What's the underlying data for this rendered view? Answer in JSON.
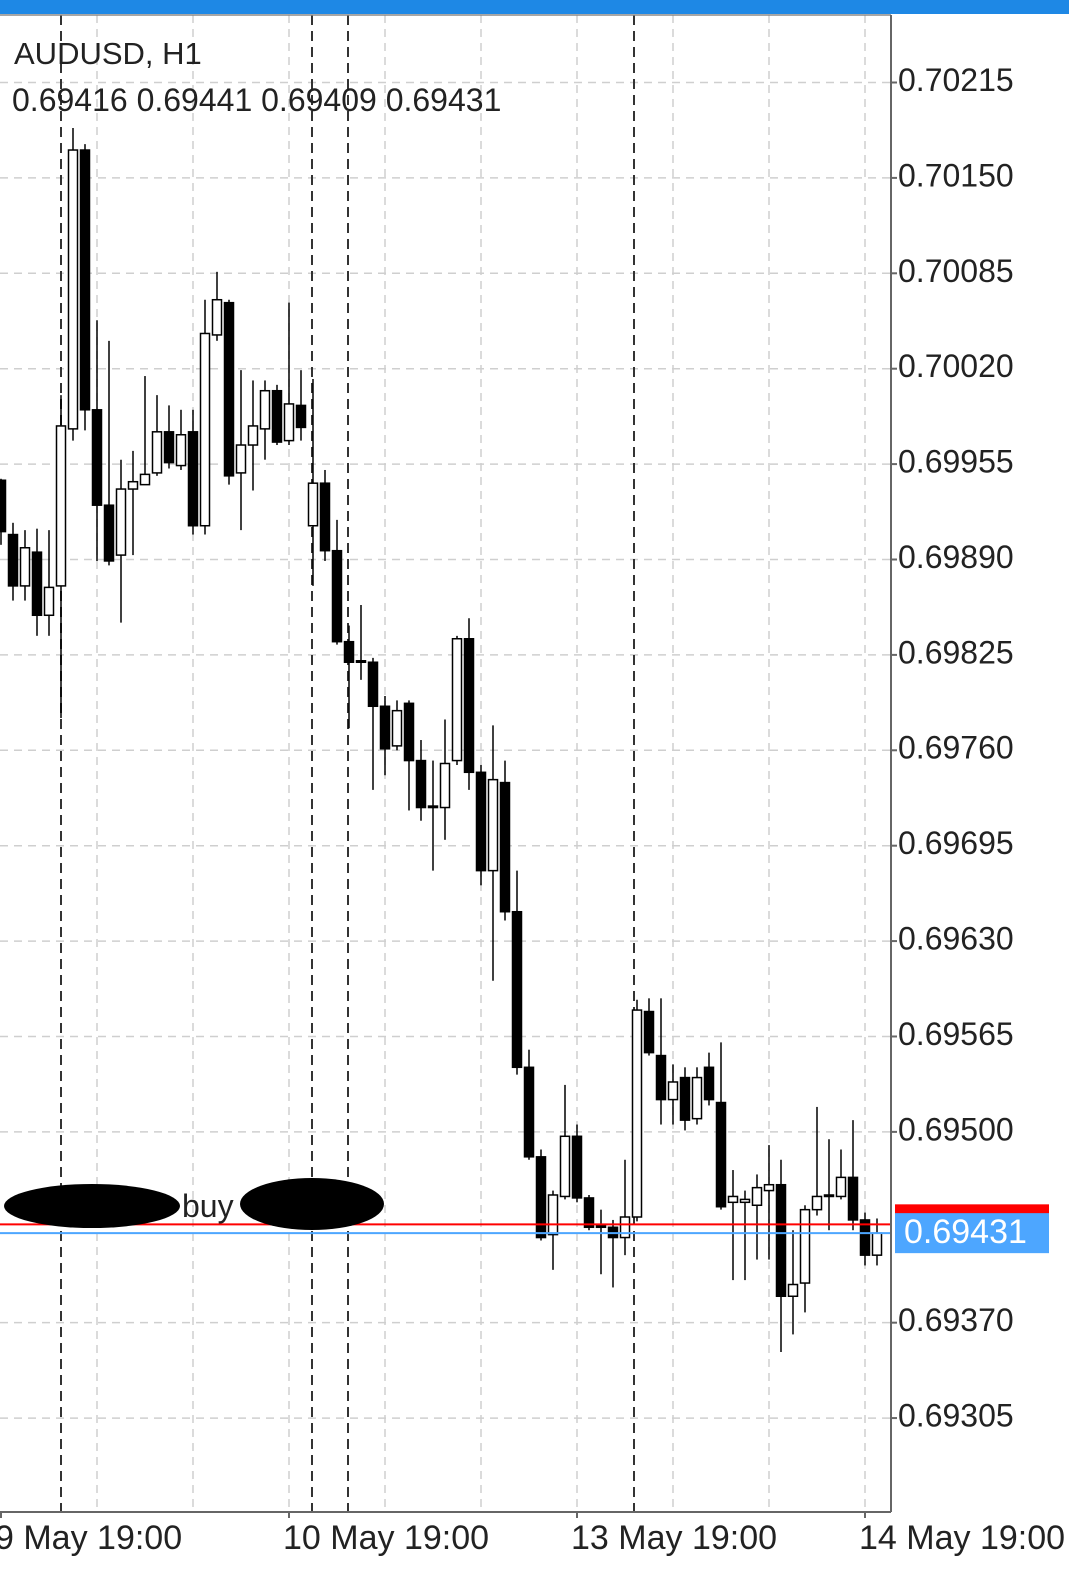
{
  "chart_data": {
    "type": "candlestick",
    "title": "AUDUSD, H1",
    "categories": [
      "9 May 19:00",
      null,
      null,
      null,
      null,
      null,
      null,
      null,
      null,
      null,
      null,
      null,
      null,
      null,
      null,
      null,
      null,
      null,
      null,
      null,
      null,
      null,
      null,
      null,
      "10 May 19:00",
      null,
      null,
      null,
      null,
      null,
      null,
      null,
      null,
      null,
      null,
      null,
      null,
      null,
      null,
      null,
      null,
      null,
      null,
      null,
      null,
      null,
      null,
      null,
      "13 May 19:00",
      null,
      null,
      null,
      null,
      null,
      null,
      null,
      null,
      null,
      null,
      null,
      null,
      null,
      null,
      null,
      null,
      null,
      null,
      null,
      null,
      null,
      null,
      null,
      "14 May 19:00",
      null
    ],
    "open": [
      0.69944,
      0.69907,
      0.69872,
      0.69895,
      0.69852,
      0.69872,
      0.69979,
      0.70169,
      0.69992,
      0.69927,
      0.69893,
      0.69938,
      0.69941,
      0.69949,
      0.69977,
      0.69954,
      0.69977,
      0.69913,
      0.70043,
      0.70065,
      0.69949,
      0.69968,
      0.69979,
      0.70005,
      0.69971,
      0.69995,
      0.69913,
      0.69942,
      0.69896,
      0.69834,
      0.69821,
      0.6982,
      0.6979,
      0.69763,
      0.69792,
      0.69753,
      0.69722,
      0.69721,
      0.69753,
      0.69836,
      0.69745,
      0.69678,
      0.69738,
      0.6965,
      0.69544,
      0.69483,
      0.6943,
      0.69456,
      0.69497,
      0.69455,
      0.69437,
      0.69435,
      0.69428,
      0.69442,
      0.69582,
      0.69552,
      0.69522,
      0.69537,
      0.69509,
      0.69544,
      0.6952,
      0.69452,
      0.69452,
      0.6945,
      0.6946,
      0.69464,
      0.69388,
      0.69397,
      0.69447,
      0.69456,
      0.69456,
      0.69469,
      0.6944,
      0.69416
    ],
    "high": [
      0.69945,
      0.69915,
      0.6991,
      0.69911,
      0.6991,
      0.70002,
      0.70184,
      0.70173,
      0.70053,
      0.70039,
      0.69958,
      0.69964,
      0.70015,
      0.70002,
      0.69995,
      0.69992,
      0.69992,
      0.70067,
      0.70086,
      0.70067,
      0.70019,
      0.70012,
      0.70012,
      0.70009,
      0.70065,
      0.70019,
      0.70013,
      0.69951,
      0.69917,
      0.69845,
      0.69859,
      0.69823,
      0.69797,
      0.69794,
      0.69794,
      0.69767,
      0.69753,
      0.69781,
      0.69838,
      0.6985,
      0.6975,
      0.69777,
      0.69753,
      0.69678,
      0.69556,
      0.69488,
      0.6946,
      0.69532,
      0.69505,
      0.69457,
      0.69447,
      0.6944,
      0.69481,
      0.6959,
      0.69591,
      0.69591,
      0.69546,
      0.69544,
      0.69544,
      0.69554,
      0.69561,
      0.69474,
      0.6946,
      0.69471,
      0.69491,
      0.69481,
      0.69433,
      0.6945,
      0.69517,
      0.69495,
      0.69488,
      0.69508,
      0.69445,
      0.69441
    ],
    "low": [
      0.699,
      0.69862,
      0.69862,
      0.69838,
      0.69838,
      0.69782,
      0.69971,
      0.69978,
      0.69889,
      0.69886,
      0.69847,
      0.69893,
      0.69941,
      0.69947,
      0.69952,
      0.69951,
      0.69907,
      0.69907,
      0.70039,
      0.69941,
      0.6991,
      0.69937,
      0.69958,
      0.69968,
      0.69968,
      0.69971,
      0.69872,
      0.69889,
      0.69832,
      0.69775,
      0.69808,
      0.69733,
      0.69743,
      0.6976,
      0.69719,
      0.69712,
      0.69678,
      0.69699,
      0.6975,
      0.69733,
      0.69668,
      0.69603,
      0.69644,
      0.69539,
      0.69481,
      0.69426,
      0.69406,
      0.69454,
      0.69452,
      0.69433,
      0.69403,
      0.69394,
      0.69416,
      0.69439,
      0.69552,
      0.69505,
      0.69505,
      0.69501,
      0.69505,
      0.69518,
      0.69447,
      0.69399,
      0.69399,
      0.69413,
      0.69413,
      0.6935,
      0.69362,
      0.69377,
      0.69443,
      0.69433,
      0.69454,
      0.69433,
      0.69409,
      0.69409
    ],
    "close": [
      0.69909,
      0.69872,
      0.69898,
      0.69852,
      0.69871,
      0.69981,
      0.70169,
      0.69992,
      0.69927,
      0.69889,
      0.69938,
      0.69943,
      0.69948,
      0.69977,
      0.69956,
      0.69975,
      0.69913,
      0.70044,
      0.70067,
      0.69947,
      0.69968,
      0.69981,
      0.70005,
      0.6997,
      0.69996,
      0.6998,
      0.69942,
      0.69896,
      0.69834,
      0.6982,
      0.6982,
      0.6979,
      0.69761,
      0.69787,
      0.69753,
      0.69721,
      0.69721,
      0.69751,
      0.69836,
      0.69745,
      0.69678,
      0.6974,
      0.6965,
      0.69544,
      0.69483,
      0.69428,
      0.69457,
      0.69497,
      0.69455,
      0.69435,
      0.69435,
      0.69428,
      0.69442,
      0.69583,
      0.69554,
      0.69522,
      0.69534,
      0.69508,
      0.69537,
      0.69522,
      0.69449,
      0.69456,
      0.69454,
      0.69462,
      0.69464,
      0.69388,
      0.69396,
      0.69447,
      0.69456,
      0.69457,
      0.69469,
      0.6944,
      0.69416,
      0.69431
    ],
    "up_color": "#ffffff",
    "down_color": "#000000",
    "ylim": [
      0.69241,
      0.70261
    ],
    "yticks": [
      0.70215,
      {
        "value": 0.7015,
        "label": "0.70150"
      },
      0.70085,
      {
        "value": 0.7002,
        "label": "0.70020"
      },
      0.69955,
      {
        "value": 0.6989,
        "label": "0.69890"
      },
      0.69825,
      {
        "value": 0.6976,
        "label": "0.69760"
      },
      0.69695,
      {
        "value": 0.6963,
        "label": "0.69630"
      },
      0.69565,
      {
        "value": 0.695,
        "label": "0.69500"
      },
      {
        "value": 0.6937,
        "label": "0.69370"
      },
      0.69305
    ],
    "grid": true,
    "order_line": {
      "label": "buy",
      "value": 0.69437,
      "color": "#ff0000"
    },
    "bid_color": "#4da6ff"
  }
}
